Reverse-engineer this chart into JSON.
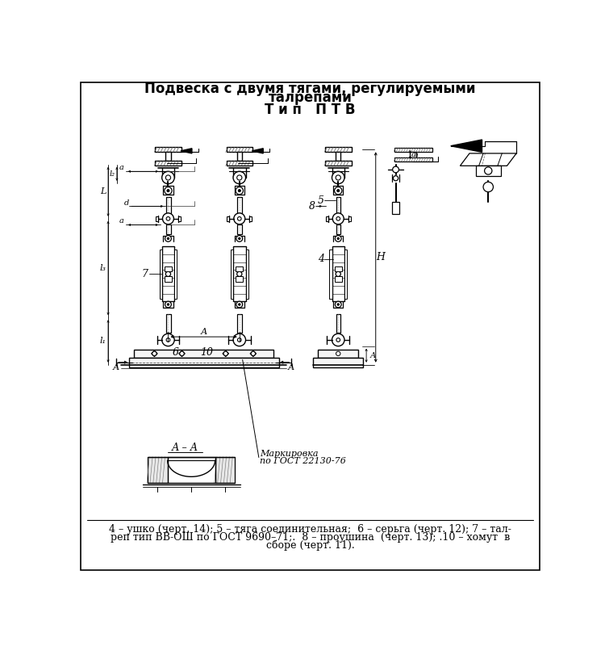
{
  "title_line1": "Подвеска с двумя тягами, регулируемыми",
  "title_line2": "талрепами",
  "subtitle": "Т и п   П Т В",
  "caption_line1": "4 – ушко (черт. 14); 5 – тяга соединительная;  6 – серьга (черт. 12); 7 – тал-",
  "caption_line2": "реп тип ВВ-ОШ по ГОСТ 9690–71;.  8 – проушина  (черт. 13); .10 – хомут  в",
  "caption_line3": "сборе (черт. 11).",
  "bg_color": "#ffffff",
  "title_fontsize": 12,
  "subtitle_fontsize": 12,
  "caption_fontsize": 9
}
